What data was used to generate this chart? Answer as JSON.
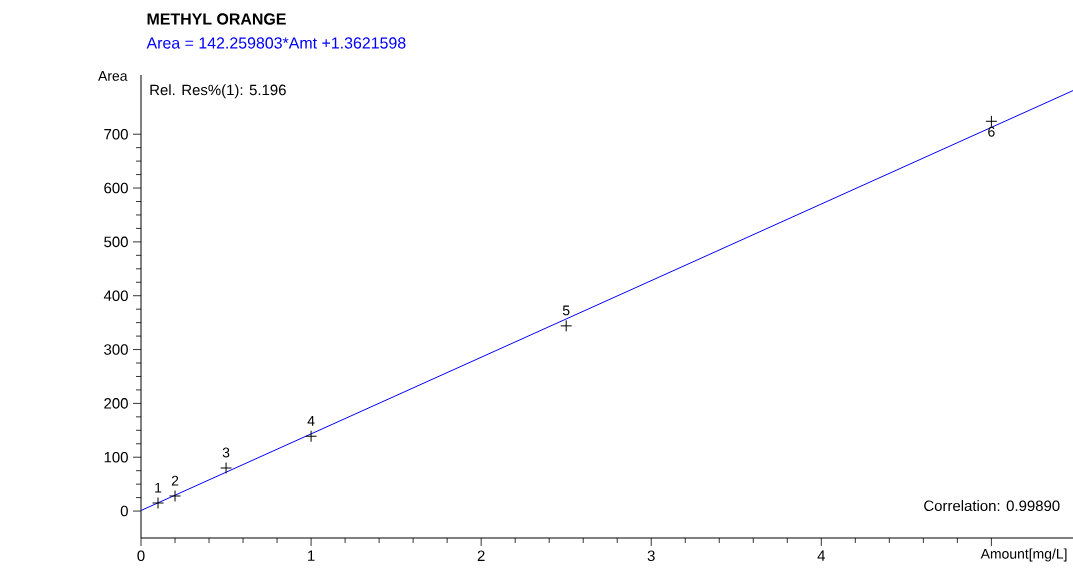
{
  "chart_data": {
    "type": "scatter",
    "title": "METHYL ORANGE",
    "subtitle": "Area = 142.259803*Amt +1.3621598",
    "xlabel": "Amount[mg/L]",
    "ylabel": "Area",
    "series": [
      {
        "color": "#000000",
        "marker": "cross",
        "x": [
          0.1,
          0.2,
          0.5,
          1,
          2.5,
          5
        ],
        "values": [
          15,
          28,
          80,
          139,
          344,
          724
        ]
      },
      {
        "type": "line",
        "color": "#0000ff",
        "marker": "none",
        "x": [
          0,
          5.48
        ],
        "values": [
          1,
          781
        ]
      }
    ],
    "xlim": [
      0,
      5.48
    ],
    "ylim": [
      -50,
      810
    ],
    "xticks": [
      0,
      1,
      2,
      3,
      4,
      {
        "value": 5,
        "label": null
      }
    ],
    "yticks": [
      0,
      100,
      200,
      300,
      400,
      500,
      600,
      700
    ],
    "annotations": [
      "Rel. Res%(1): 5.196",
      "Correlation: 0.99890",
      {
        "text": "1",
        "x": 0.1,
        "y": 15
      },
      {
        "text": "2",
        "x": 0.2,
        "y": 28
      },
      {
        "text": "3",
        "x": 0.5,
        "y": 80
      },
      {
        "text": "4",
        "x": 1,
        "y": 139
      },
      {
        "text": "5",
        "x": 2.5,
        "y": 344
      },
      {
        "text": "6",
        "x": 5,
        "y": 724
      }
    ]
  }
}
